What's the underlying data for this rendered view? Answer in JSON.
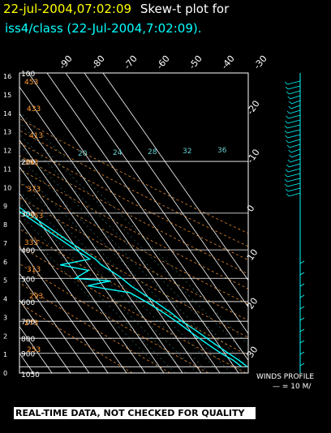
{
  "header": {
    "line1_part1": "22-jul-2004,07:02:09",
    "line1_part2": "Skew-t plot for",
    "line2": "iss4/class (22-Jul-2004,7:02:09).",
    "color_date": "#ffff00",
    "color_text": "#ffffff",
    "color_station": "#00ffff"
  },
  "footer": {
    "quality_note": "REAL-TIME DATA, NOT CHECKED FOR QUALITY"
  },
  "winds": {
    "label": "WINDS PROFILE",
    "scale": "— = 10 M/"
  },
  "chart_data": {
    "type": "line",
    "title": "Skew-t plot",
    "colors": {
      "profile": "#00ffff",
      "isobar": "#ffffff",
      "isotherm": "#ffffff",
      "dry_adiabat": "#ff9933",
      "moist_label": "#00ffff"
    },
    "pressure_labels": [
      "100",
      "200",
      "300",
      "400",
      "500",
      "600",
      "700",
      "800",
      "900",
      "1050"
    ],
    "height_labels_km": [
      "16",
      "15",
      "14",
      "13",
      "12",
      "11",
      "10",
      "9",
      "8",
      "7",
      "6",
      "5",
      "4",
      "3",
      "2",
      "1",
      "0"
    ],
    "temperature_ticks_top": [
      "-90",
      "-80",
      "-70",
      "-60",
      "-50",
      "-40",
      "-30"
    ],
    "temperature_ticks_right": [
      "-20",
      "-10",
      "0",
      "10",
      "20",
      "30"
    ],
    "mixing_ratio_labels": [
      "20",
      "24",
      "28",
      "32",
      "36"
    ],
    "dry_adiabat_labels": [
      "453",
      "433",
      "413",
      "393",
      "373",
      "353",
      "333",
      "313",
      "293",
      "273",
      "253"
    ],
    "temperature_profile": [
      {
        "p": 100,
        "t": -69
      },
      {
        "p": 120,
        "t": -66
      },
      {
        "p": 150,
        "t": -60
      },
      {
        "p": 180,
        "t": -55
      },
      {
        "p": 200,
        "t": -53
      },
      {
        "p": 250,
        "t": -42
      },
      {
        "p": 300,
        "t": -33
      },
      {
        "p": 350,
        "t": -25
      },
      {
        "p": 400,
        "t": -18
      },
      {
        "p": 430,
        "t": -14
      },
      {
        "p": 450,
        "t": -13
      },
      {
        "p": 480,
        "t": -9
      },
      {
        "p": 500,
        "t": -7
      },
      {
        "p": 530,
        "t": -5
      },
      {
        "p": 560,
        "t": -2
      },
      {
        "p": 600,
        "t": 2
      },
      {
        "p": 650,
        "t": 6
      },
      {
        "p": 700,
        "t": 9
      },
      {
        "p": 750,
        "t": 13
      },
      {
        "p": 800,
        "t": 16
      },
      {
        "p": 850,
        "t": 19
      },
      {
        "p": 900,
        "t": 22
      },
      {
        "p": 950,
        "t": 25
      },
      {
        "p": 1000,
        "t": 27
      }
    ],
    "dewpoint_profile": [
      {
        "p": 100,
        "t": -72
      },
      {
        "p": 120,
        "t": -69
      },
      {
        "p": 150,
        "t": -63
      },
      {
        "p": 180,
        "t": -58
      },
      {
        "p": 200,
        "t": -56
      },
      {
        "p": 250,
        "t": -45
      },
      {
        "p": 300,
        "t": -36
      },
      {
        "p": 350,
        "t": -28
      },
      {
        "p": 400,
        "t": -21
      },
      {
        "p": 430,
        "t": -17
      },
      {
        "p": 450,
        "t": -35
      },
      {
        "p": 470,
        "t": -22
      },
      {
        "p": 500,
        "t": -32
      },
      {
        "p": 510,
        "t": -14
      },
      {
        "p": 530,
        "t": -28
      },
      {
        "p": 560,
        "t": -8
      },
      {
        "p": 600,
        "t": -3
      },
      {
        "p": 650,
        "t": 2
      },
      {
        "p": 700,
        "t": 6
      },
      {
        "p": 750,
        "t": 9
      },
      {
        "p": 800,
        "t": 12
      },
      {
        "p": 850,
        "t": 15
      },
      {
        "p": 900,
        "t": 18
      },
      {
        "p": 950,
        "t": 22
      },
      {
        "p": 1000,
        "t": 24
      }
    ]
  }
}
